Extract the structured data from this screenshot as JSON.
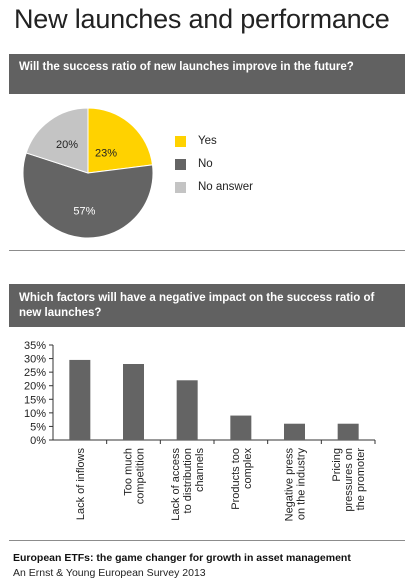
{
  "page": {
    "title": "New launches and performance",
    "footer_title": "European ETFs: the game changer for growth in asset management",
    "footer_subtitle": "An Ernst & Young European Survey 2013"
  },
  "pie_section": {
    "question": "Will the success ratio of new launches improve in the future?"
  },
  "bar_section": {
    "question": "Which factors will have a negative impact on the success ratio of new launches?"
  },
  "colors": {
    "yes": "#ffd200",
    "no": "#646464",
    "no_answer": "#c4c4c4",
    "bars": "#646464",
    "header": "#616161"
  },
  "chart_data": [
    {
      "type": "pie",
      "title": "Will the success ratio of new launches improve in the future?",
      "slices": [
        {
          "label": "Yes",
          "value": 23,
          "display": "23%",
          "color": "#ffd200"
        },
        {
          "label": "No",
          "value": 57,
          "display": "57%",
          "color": "#646464"
        },
        {
          "label": "No answer",
          "value": 20,
          "display": "20%",
          "color": "#c4c4c4"
        }
      ],
      "legend_position": "right"
    },
    {
      "type": "bar",
      "title": "Which factors will have a negative impact on the success ratio of new launches?",
      "categories": [
        [
          "Lack of inflows"
        ],
        [
          "Too much",
          "competition"
        ],
        [
          "Lack of access",
          "to distribution",
          "channels"
        ],
        [
          "Products too",
          "complex"
        ],
        [
          "Negative press",
          "on the industry"
        ],
        [
          "Pricing",
          "pressures on",
          "the promoter"
        ]
      ],
      "values": [
        29.5,
        28,
        22,
        9,
        6,
        6
      ],
      "ylim": [
        0,
        35
      ],
      "yticks": [
        0,
        5,
        10,
        15,
        20,
        25,
        30,
        35
      ],
      "ytick_labels": [
        "0%",
        "5%",
        "10%",
        "15%",
        "20%",
        "25%",
        "30%",
        "35%"
      ],
      "grid": false
    }
  ]
}
